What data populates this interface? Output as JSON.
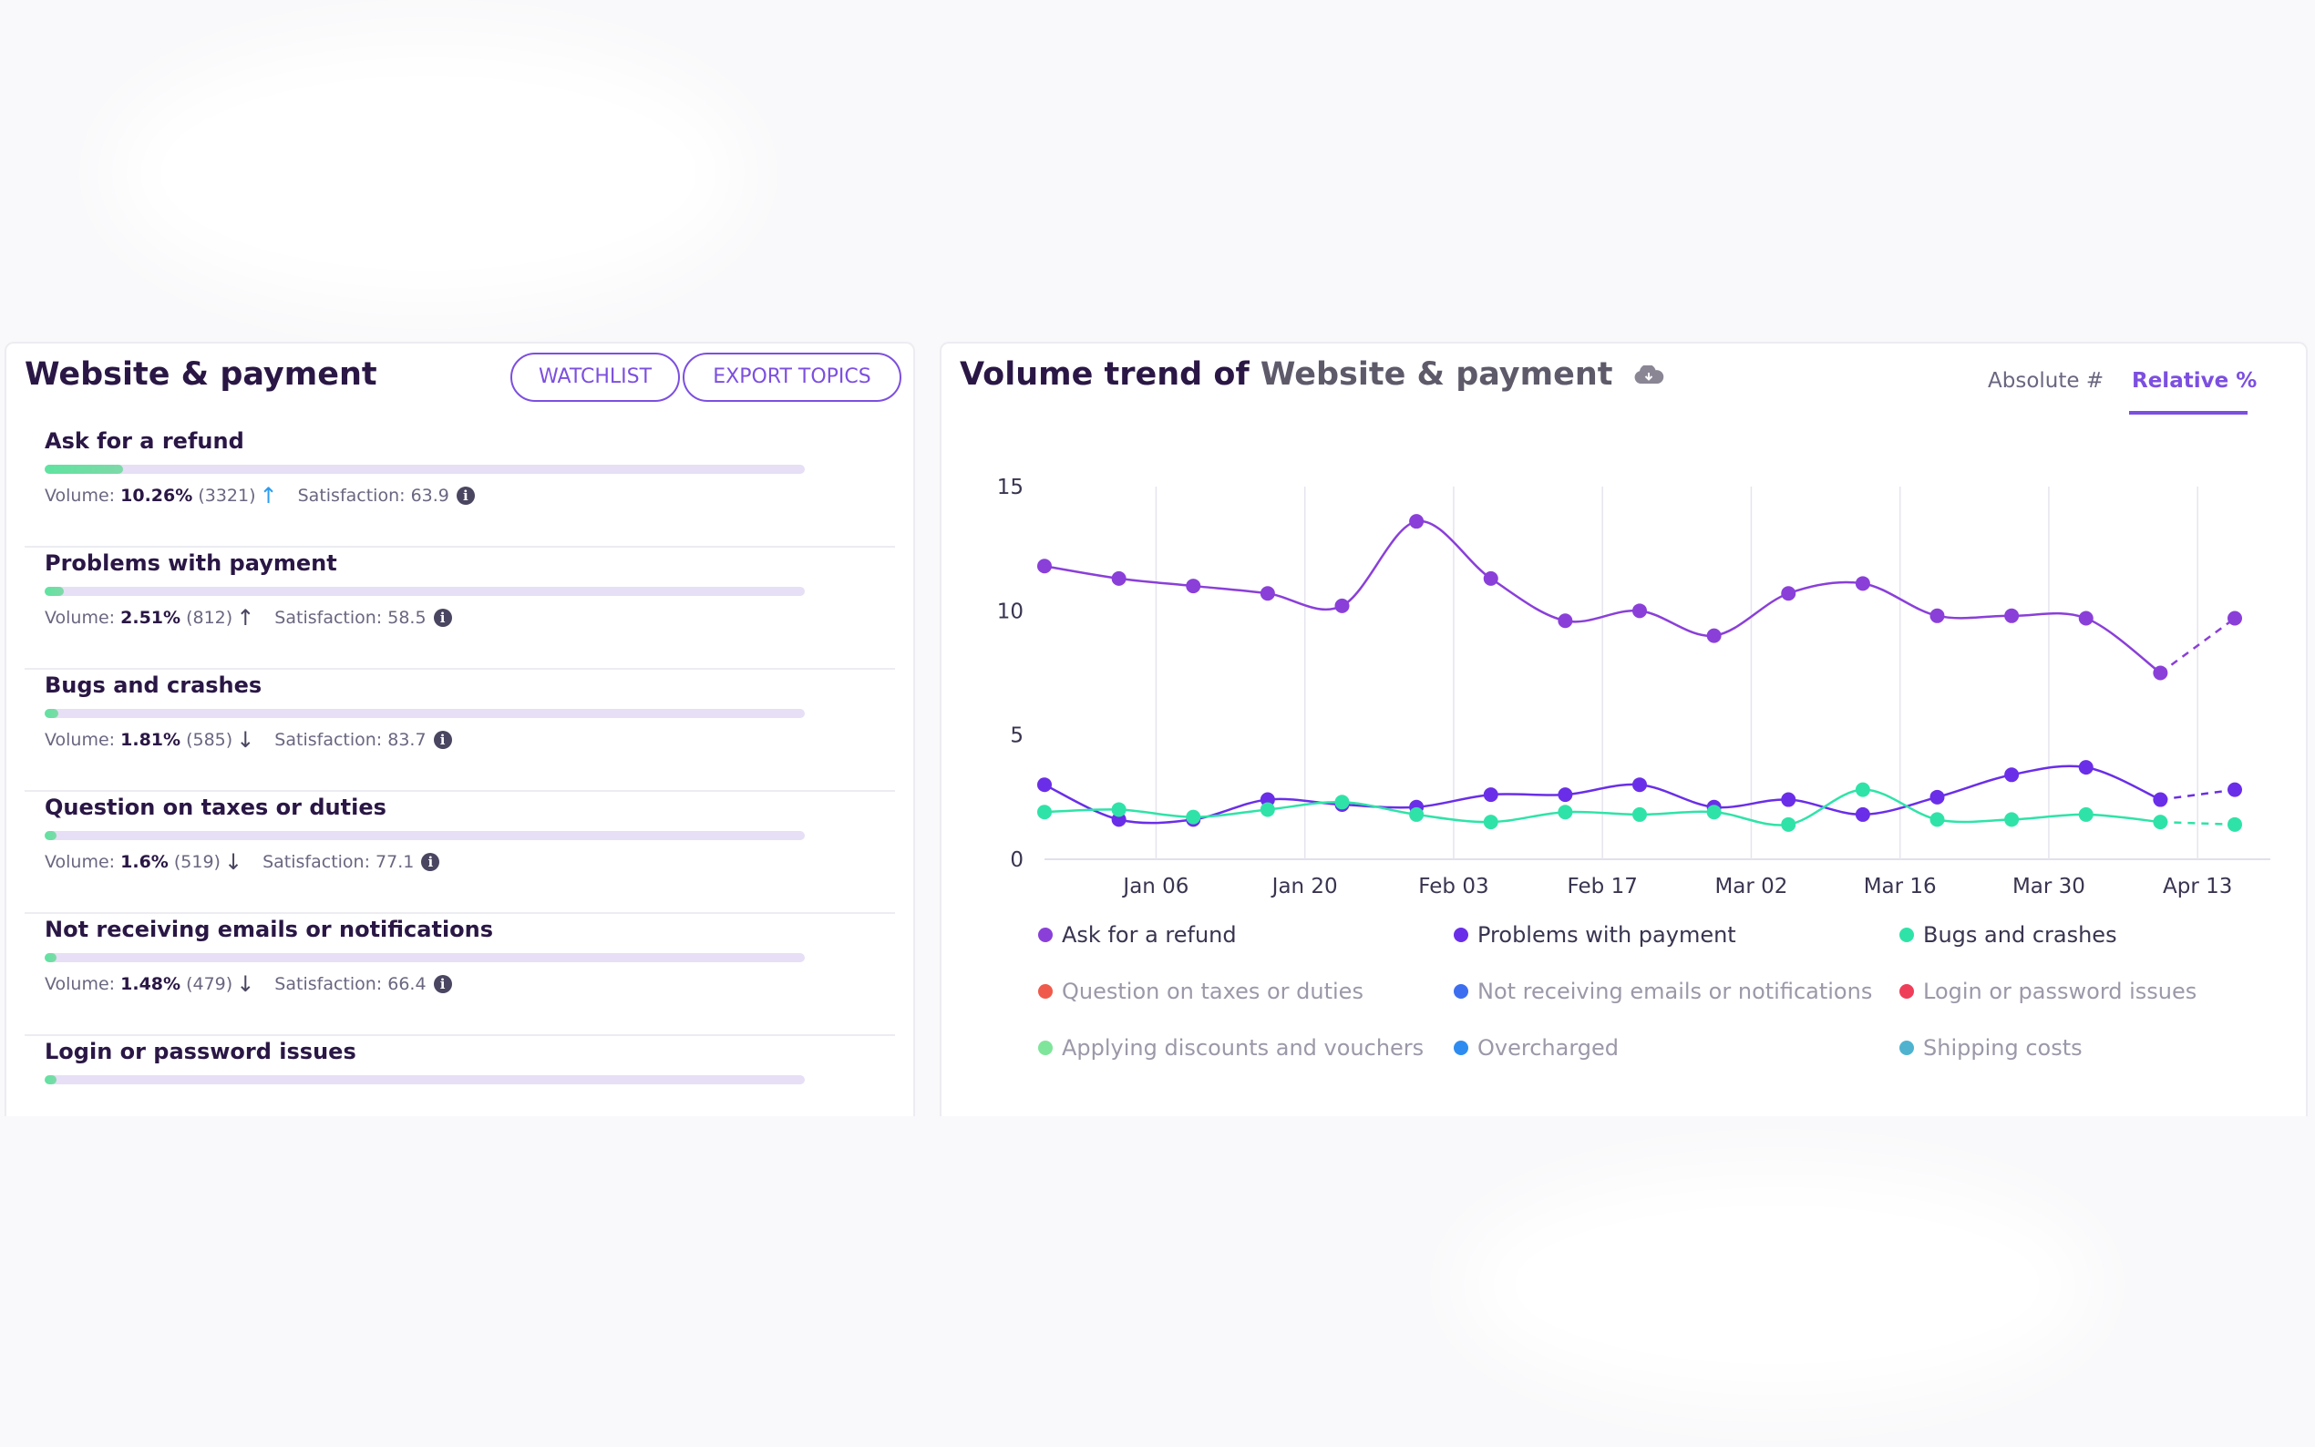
{
  "topics_panel": {
    "title": "Website & payment",
    "watchlist_label": "WATCHLIST",
    "export_label": "EXPORT TOPICS",
    "volume_label": "Volume:",
    "satisfaction_label": "Satisfaction:",
    "topics": [
      {
        "name": "Ask for a refund",
        "volume_pct": "10.26%",
        "count": "(3321)",
        "satisfaction": "63.9",
        "trend": "up",
        "share": 0.1026
      },
      {
        "name": "Problems with payment",
        "volume_pct": "2.51%",
        "count": "(812)",
        "satisfaction": "58.5",
        "trend": "up",
        "share": 0.0251
      },
      {
        "name": "Bugs and crashes",
        "volume_pct": "1.81%",
        "count": "(585)",
        "satisfaction": "83.7",
        "trend": "down",
        "share": 0.0181
      },
      {
        "name": "Question on taxes or duties",
        "volume_pct": "1.6%",
        "count": "(519)",
        "satisfaction": "77.1",
        "trend": "down",
        "share": 0.016
      },
      {
        "name": "Not receiving emails or notifications",
        "volume_pct": "1.48%",
        "count": "(479)",
        "satisfaction": "66.4",
        "trend": "down",
        "share": 0.0148
      },
      {
        "name": "Login or password issues",
        "share": 0.012
      }
    ]
  },
  "trend_panel": {
    "title_prefix": "Volume trend of",
    "title_topic": "Website & payment",
    "tab_absolute": "Absolute #",
    "tab_relative": "Relative %",
    "active_tab": "relative"
  },
  "chart_data": {
    "type": "line",
    "ylim": [
      0,
      15
    ],
    "yticks": [
      0,
      5,
      10,
      15
    ],
    "x_tick_labels": [
      "Jan 06",
      "Jan 20",
      "Feb 03",
      "Feb 17",
      "Mar 02",
      "Mar 16",
      "Mar 30",
      "Apr 13"
    ],
    "x_tick_index": [
      1.5,
      3.5,
      5.5,
      7.5,
      9.5,
      11.5,
      13.5,
      15.5
    ],
    "grid": "vertical",
    "legend_position": "bottom",
    "series": [
      {
        "name": "Ask for a refund",
        "color": "#8a3fd9",
        "values": [
          11.8,
          11.3,
          11.0,
          10.7,
          10.2,
          13.6,
          11.3,
          9.6,
          10.0,
          9.0,
          10.7,
          11.1,
          9.8,
          9.8,
          9.7,
          7.5,
          9.7
        ],
        "projected_last": true
      },
      {
        "name": "Problems with payment",
        "color": "#6a2ee8",
        "values": [
          3.0,
          1.6,
          1.6,
          2.4,
          2.2,
          2.1,
          2.6,
          2.6,
          3.0,
          2.1,
          2.4,
          1.8,
          2.5,
          3.4,
          3.7,
          2.4,
          2.8
        ],
        "projected_last": true
      },
      {
        "name": "Bugs and crashes",
        "color": "#2fe3a8",
        "values": [
          1.9,
          2.0,
          1.7,
          2.0,
          2.3,
          1.8,
          1.5,
          1.9,
          1.8,
          1.9,
          1.4,
          2.8,
          1.6,
          1.6,
          1.8,
          1.5,
          1.4
        ],
        "projected_last": true
      },
      {
        "name": "Question on taxes or duties",
        "color": "#ef5a4a"
      },
      {
        "name": "Not receiving emails or notifications",
        "color": "#3d6ef0"
      },
      {
        "name": "Login or password issues",
        "color": "#ef3e5a"
      },
      {
        "name": "Applying discounts and vouchers",
        "color": "#7fe59a"
      },
      {
        "name": "Overcharged",
        "color": "#2e8cf0"
      },
      {
        "name": "Shipping costs",
        "color": "#4fb3cf"
      }
    ]
  }
}
